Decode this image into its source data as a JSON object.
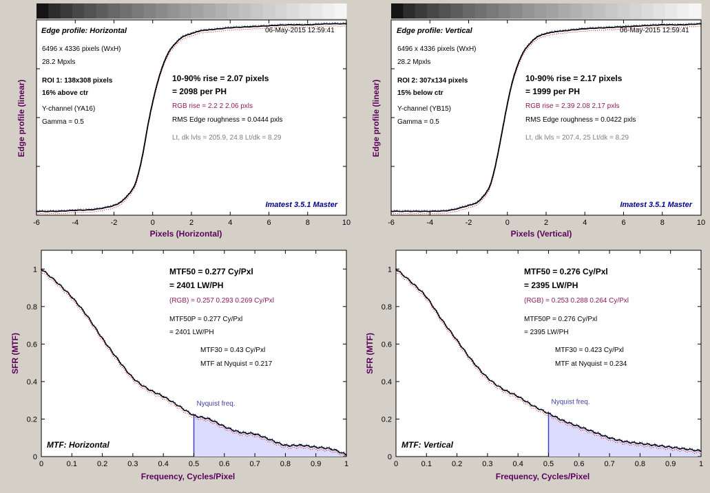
{
  "colors": {
    "panel_bg": "#ffffff",
    "axis_label": "#5a005a",
    "rgb_text": "#8b1a5a",
    "info_gray": "#808080",
    "nyquist_line": "#4040c0",
    "nyquist_fill": "#dcdcff",
    "credit": "#00008b",
    "curve": "#000000",
    "red_trace": "#cc0000",
    "blue_trace": "#3030c0"
  },
  "panels": {
    "edge_h": {
      "title_prefix": "Edge profile: ",
      "title_name": "Horizontal",
      "timestamp": "06-May-2015 12:59:41",
      "info": [
        "6496 x 4336 pixels (WxH)",
        "28.2 Mpxls"
      ],
      "roi": [
        "ROI 1:  138x308 pixels",
        "16% above ctr"
      ],
      "channel": "Y-channel  (YA16)",
      "gamma": "Gamma = 0.5",
      "rise_line1": "10-90% rise = 2.07 pixels",
      "rise_line2": "= 2098 per PH",
      "rgb_rise": "RGB rise = 2.2  2  2.06 pxls",
      "rms": "RMS Edge roughness = 0.0444 pxls",
      "levels": "Lt, dk lvls = 205.9, 24.8   Lt/dk = 8.29",
      "credit": "Imatest 3.5.1 Master",
      "ylabel": "Edge profile (linear)",
      "xlabel": "Pixels (Horizontal)"
    },
    "edge_v": {
      "title_prefix": "Edge profile: ",
      "title_name": "Vertical",
      "timestamp": "06-May-2015 12:59:41",
      "info": [
        "6496 x 4336 pixels (WxH)",
        "28.2 Mpxls"
      ],
      "roi": [
        "ROI 2:  307x134 pixels",
        "15% below ctr"
      ],
      "channel": "Y-channel  (YB15)",
      "gamma": "Gamma = 0.5",
      "rise_line1": "10-90% rise = 2.17 pixels",
      "rise_line2": "= 1999 per PH",
      "rgb_rise": "RGB rise = 2.39  2.08  2.17 pxls",
      "rms": "RMS Edge roughness = 0.0422 pxls",
      "levels": "Lt, dk lvls = 207.4, 25   Lt/dk = 8.29",
      "credit": "Imatest 3.5.1 Master",
      "ylabel": "Edge profile (linear)",
      "xlabel": "Pixels (Vertical)"
    },
    "mtf_h": {
      "mtf50_line1": "MTF50 = 0.277 Cy/Pxl",
      "mtf50_line2": "= 2401 LW/PH",
      "rgb": "(RGB) = 0.257  0.293  0.269 Cy/Pxl",
      "mtf50p_line1": "MTF50P = 0.277 Cy/Pxl",
      "mtf50p_line2": "= 2401 LW/PH",
      "mtf30": "MTF30 = 0.43 Cy/Pxl",
      "nyq_text": "MTF at Nyquist = 0.217",
      "nyq_label": "Nyquist freq.",
      "title_prefix": "MTF: ",
      "title_name": "Horizontal",
      "ylabel": "SFR (MTF)",
      "xlabel": "Frequency, Cycles/Pixel"
    },
    "mtf_v": {
      "mtf50_line1": "MTF50 = 0.276 Cy/Pxl",
      "mtf50_line2": "= 2395 LW/PH",
      "rgb": "(RGB) = 0.253  0.288  0.264 Cy/Pxl",
      "mtf50p_line1": "MTF50P = 0.276 Cy/Pxl",
      "mtf50p_line2": "= 2395 LW/PH",
      "mtf30": "MTF30 = 0.423 Cy/Pxl",
      "nyq_text": "MTF at Nyquist = 0.234",
      "nyq_label": "Nyquist freq.",
      "title_prefix": "MTF: ",
      "title_name": "Vertical",
      "ylabel": "SFR (MTF)",
      "xlabel": "Frequency, Cycles/Pixel"
    }
  },
  "chart_data": [
    {
      "id": "edge_h",
      "type": "line",
      "xlim": [
        -6,
        10
      ],
      "xticks": [
        -6,
        -4,
        -2,
        0,
        2,
        4,
        6,
        8,
        10
      ],
      "ylim": [
        0,
        1
      ],
      "grid": false,
      "series": [
        {
          "x": [
            -6,
            -5,
            -4,
            -3,
            -2,
            -1.5,
            -1,
            -0.75,
            -0.5,
            -0.25,
            0,
            0.25,
            0.5,
            0.75,
            1,
            1.5,
            2,
            2.5,
            3,
            4,
            5,
            6,
            7,
            8,
            9,
            10
          ],
          "values": [
            0.02,
            0.02,
            0.025,
            0.03,
            0.05,
            0.08,
            0.14,
            0.21,
            0.32,
            0.46,
            0.58,
            0.68,
            0.76,
            0.82,
            0.86,
            0.91,
            0.93,
            0.945,
            0.95,
            0.96,
            0.965,
            0.97,
            0.975,
            0.975,
            0.98,
            0.98
          ]
        }
      ]
    },
    {
      "id": "edge_v",
      "type": "line",
      "xlim": [
        -6,
        10
      ],
      "xticks": [
        -6,
        -4,
        -2,
        0,
        2,
        4,
        6,
        8,
        10
      ],
      "ylim": [
        0,
        1
      ],
      "grid": false,
      "series": [
        {
          "x": [
            -6,
            -5,
            -4,
            -3,
            -2,
            -1.5,
            -1,
            -0.75,
            -0.5,
            -0.25,
            0,
            0.25,
            0.5,
            0.75,
            1,
            1.5,
            2,
            2.5,
            3,
            4,
            5,
            6,
            7,
            8,
            9,
            10
          ],
          "values": [
            0.02,
            0.02,
            0.02,
            0.025,
            0.05,
            0.07,
            0.13,
            0.2,
            0.31,
            0.44,
            0.57,
            0.68,
            0.76,
            0.82,
            0.86,
            0.91,
            0.93,
            0.94,
            0.945,
            0.955,
            0.96,
            0.965,
            0.97,
            0.975,
            0.975,
            0.98
          ]
        }
      ]
    },
    {
      "id": "mtf_h",
      "type": "line",
      "xlim": [
        0,
        1
      ],
      "xticks": [
        0,
        0.1,
        0.2,
        0.3,
        0.4,
        0.5,
        0.6,
        0.7,
        0.8,
        0.9,
        1
      ],
      "ylim": [
        0,
        1.1
      ],
      "yticks": [
        0,
        0.2,
        0.4,
        0.6,
        0.8,
        1
      ],
      "nyquist": 0.5,
      "grid": false,
      "series": [
        {
          "x": [
            0,
            0.05,
            0.1,
            0.15,
            0.2,
            0.25,
            0.3,
            0.35,
            0.4,
            0.45,
            0.5,
            0.55,
            0.6,
            0.65,
            0.7,
            0.75,
            0.8,
            0.85,
            0.9,
            0.95,
            1
          ],
          "values": [
            1,
            0.93,
            0.85,
            0.75,
            0.63,
            0.52,
            0.42,
            0.36,
            0.32,
            0.27,
            0.22,
            0.2,
            0.16,
            0.13,
            0.12,
            0.09,
            0.06,
            0.06,
            0.05,
            0.04,
            0.01
          ]
        }
      ]
    },
    {
      "id": "mtf_v",
      "type": "line",
      "xlim": [
        0,
        1
      ],
      "xticks": [
        0,
        0.1,
        0.2,
        0.3,
        0.4,
        0.5,
        0.6,
        0.7,
        0.8,
        0.9,
        1
      ],
      "ylim": [
        0,
        1.1
      ],
      "yticks": [
        0,
        0.2,
        0.4,
        0.6,
        0.8,
        1
      ],
      "nyquist": 0.5,
      "grid": false,
      "series": [
        {
          "x": [
            0,
            0.05,
            0.1,
            0.15,
            0.2,
            0.25,
            0.3,
            0.35,
            0.4,
            0.45,
            0.5,
            0.55,
            0.6,
            0.65,
            0.7,
            0.75,
            0.8,
            0.85,
            0.9,
            0.95,
            1
          ],
          "values": [
            1,
            0.93,
            0.85,
            0.73,
            0.62,
            0.51,
            0.42,
            0.36,
            0.32,
            0.27,
            0.23,
            0.19,
            0.16,
            0.13,
            0.1,
            0.08,
            0.07,
            0.06,
            0.05,
            0.04,
            0.03
          ]
        }
      ]
    }
  ]
}
